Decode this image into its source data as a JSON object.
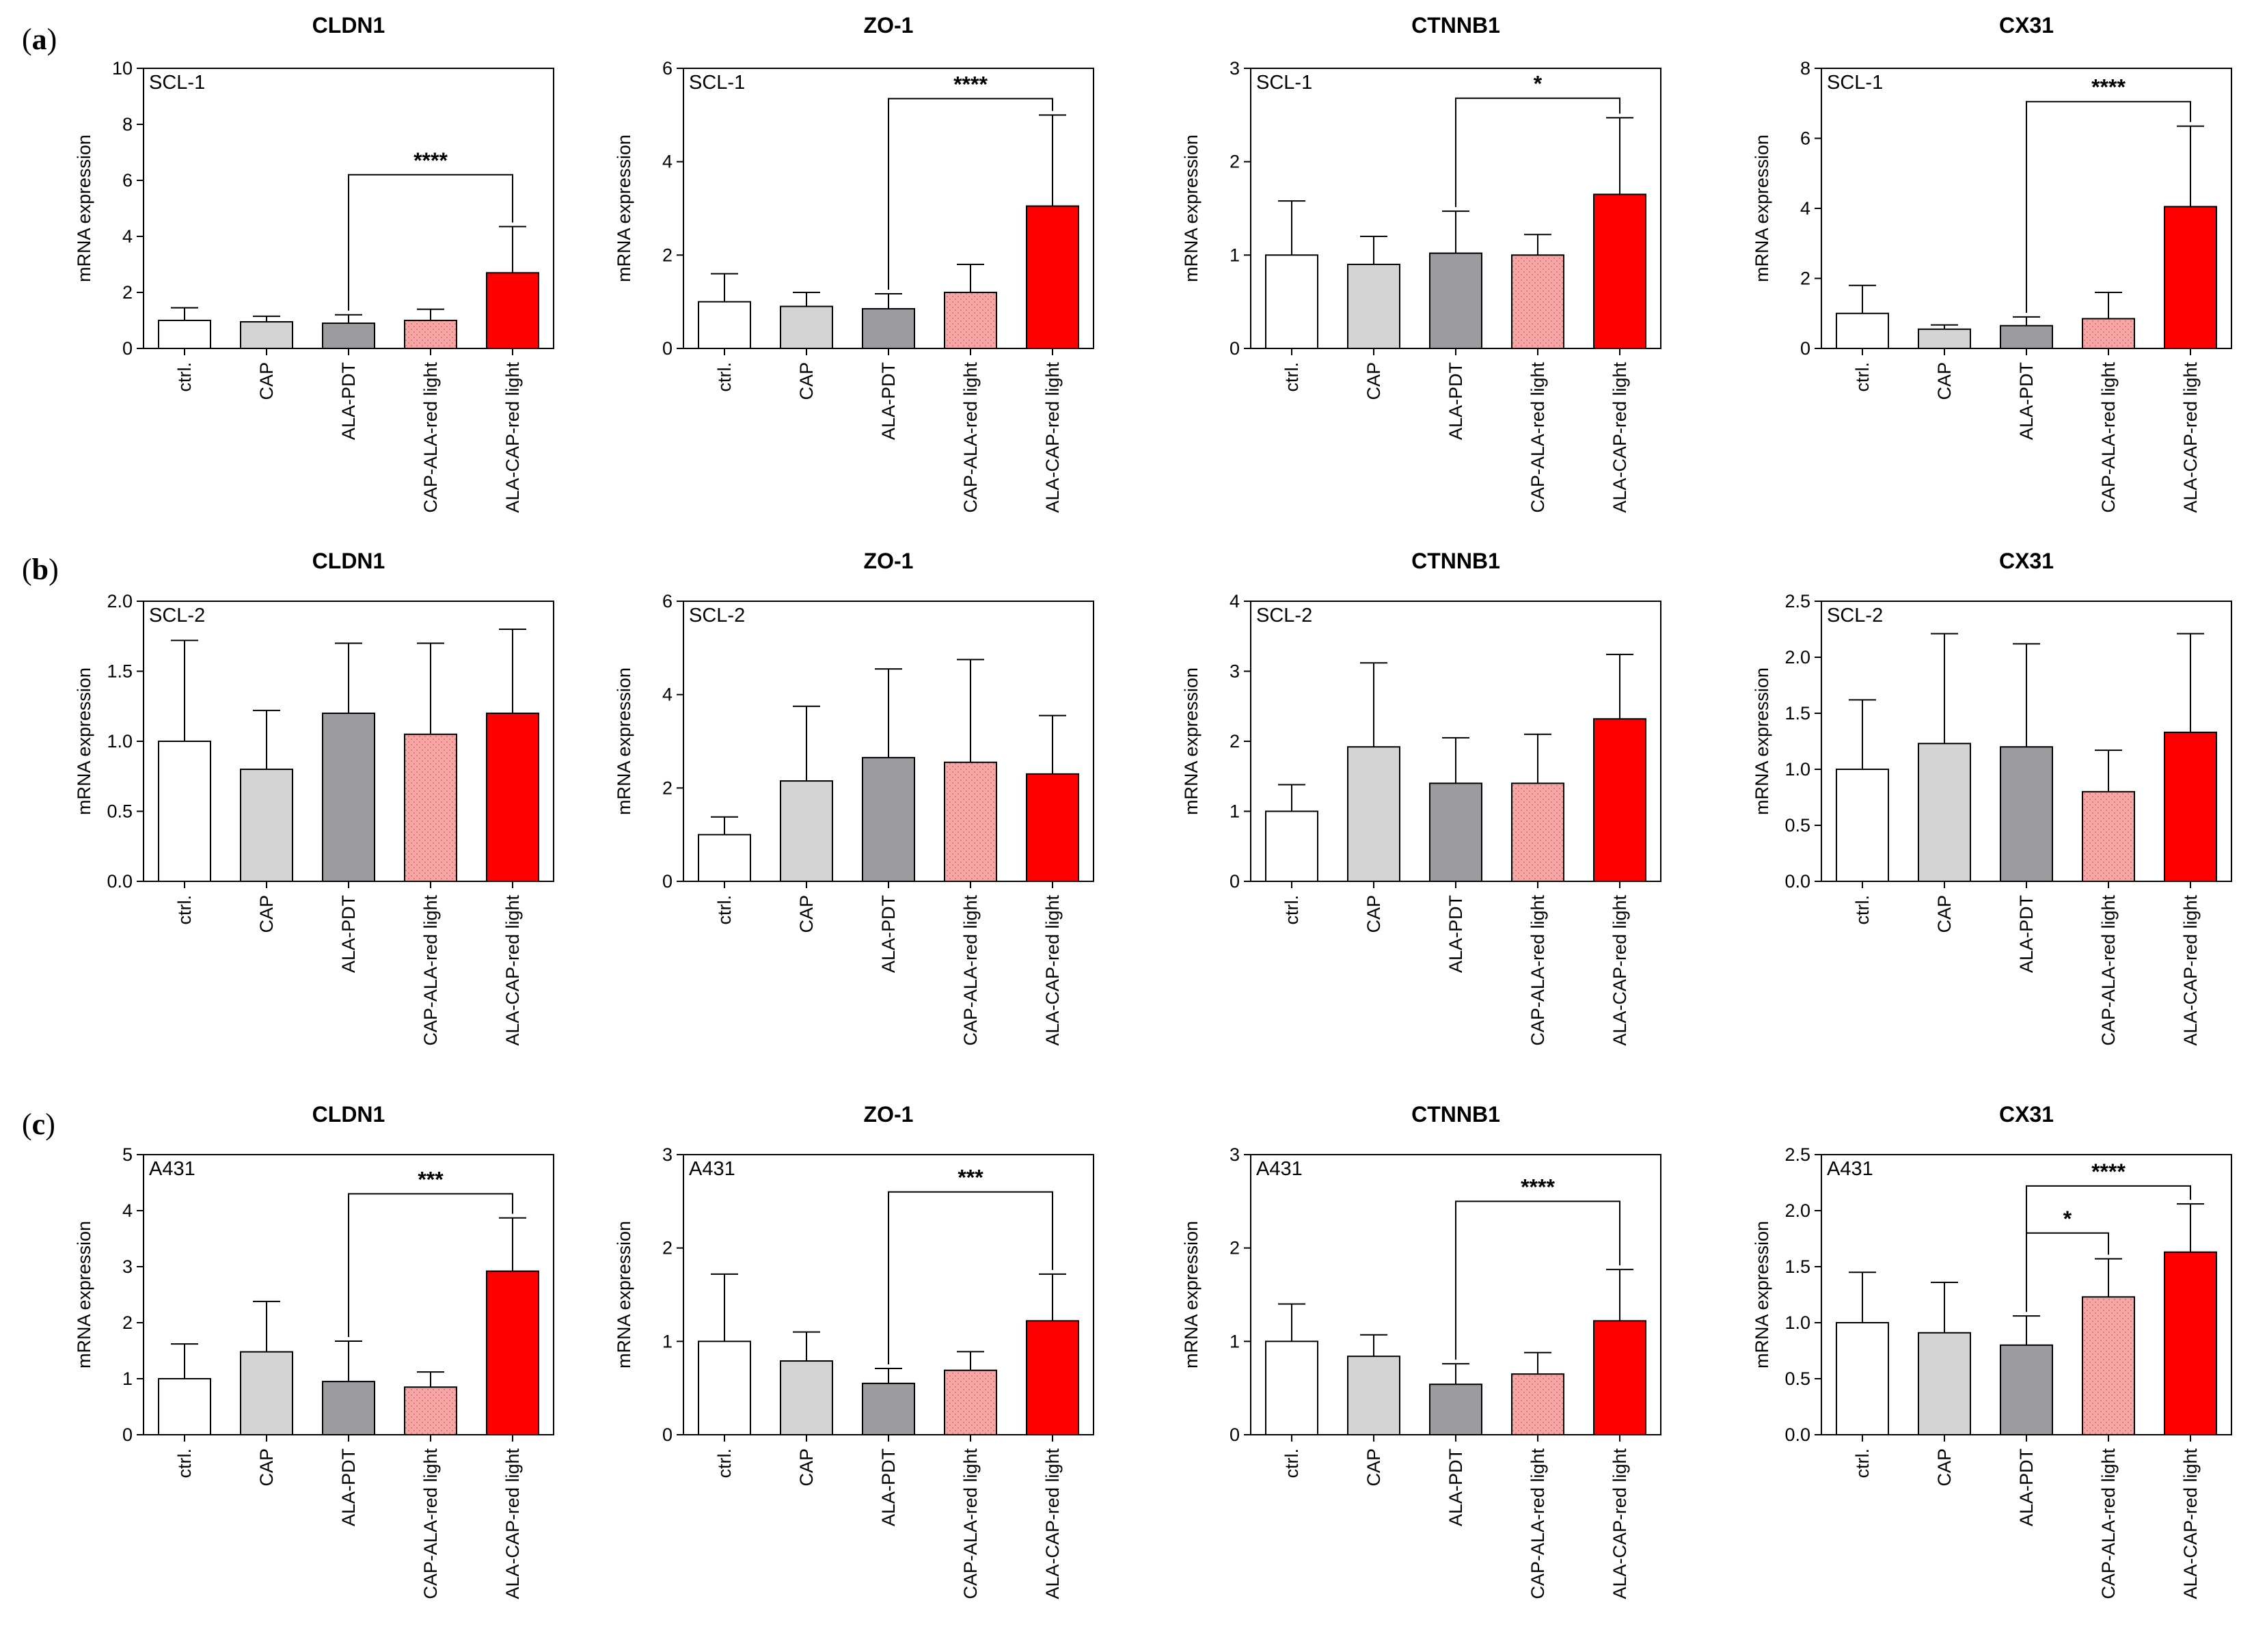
{
  "categories": [
    "ctrl.",
    "CAP",
    "ALA-PDT",
    "CAP-ALA-red light",
    "ALA-CAP-red light"
  ],
  "bar_colors": [
    "#ffffff",
    "#d4d4d4",
    "#9b9ba0",
    "#f7a6a6",
    "#ff0000"
  ],
  "ylabel": "mRNA expression",
  "row_labels": [
    {
      "open": "(",
      "letter": "a",
      "close": ")"
    },
    {
      "open": "(",
      "letter": "b",
      "close": ")"
    },
    {
      "open": "(",
      "letter": "c",
      "close": ")"
    }
  ],
  "chart_data": [
    {
      "type": "bar",
      "row": 0,
      "col": 0,
      "title": "CLDN1",
      "cell_line": "SCL-1",
      "ylabel": "mRNA expression",
      "categories": [
        "ctrl.",
        "CAP",
        "ALA-PDT",
        "CAP-ALA-red light",
        "ALA-CAP-red light"
      ],
      "ylim": [
        0,
        10
      ],
      "ticks": [
        0,
        2,
        4,
        6,
        8,
        10
      ],
      "tick_labels": [
        "0",
        "2",
        "4",
        "6",
        "8",
        "10"
      ],
      "values": [
        1.0,
        0.95,
        0.9,
        1.0,
        2.7
      ],
      "errors": [
        0.45,
        0.2,
        0.3,
        0.4,
        1.65
      ],
      "significance": [
        {
          "from": 2,
          "to": 4,
          "label": "****",
          "y": 6.2
        }
      ]
    },
    {
      "type": "bar",
      "row": 0,
      "col": 1,
      "title": "ZO-1",
      "cell_line": "SCL-1",
      "ylabel": "mRNA expression",
      "categories": [
        "ctrl.",
        "CAP",
        "ALA-PDT",
        "CAP-ALA-red light",
        "ALA-CAP-red light"
      ],
      "ylim": [
        0,
        6
      ],
      "ticks": [
        0,
        2,
        4,
        6
      ],
      "tick_labels": [
        "0",
        "2",
        "4",
        "6"
      ],
      "values": [
        1.0,
        0.9,
        0.85,
        1.2,
        3.05
      ],
      "errors": [
        0.6,
        0.3,
        0.32,
        0.6,
        1.95
      ],
      "significance": [
        {
          "from": 2,
          "to": 4,
          "label": "****",
          "y": 5.35
        }
      ]
    },
    {
      "type": "bar",
      "row": 0,
      "col": 2,
      "title": "CTNNB1",
      "cell_line": "SCL-1",
      "ylabel": "mRNA expression",
      "categories": [
        "ctrl.",
        "CAP",
        "ALA-PDT",
        "CAP-ALA-red light",
        "ALA-CAP-red light"
      ],
      "ylim": [
        0,
        3
      ],
      "ticks": [
        0,
        1,
        2,
        3
      ],
      "tick_labels": [
        "0",
        "1",
        "2",
        "3"
      ],
      "values": [
        1.0,
        0.9,
        1.02,
        1.0,
        1.65
      ],
      "errors": [
        0.58,
        0.3,
        0.45,
        0.22,
        0.82
      ],
      "significance": [
        {
          "from": 2,
          "to": 4,
          "label": "*",
          "y": 2.68
        }
      ]
    },
    {
      "type": "bar",
      "row": 0,
      "col": 3,
      "title": "CX31",
      "cell_line": "SCL-1",
      "ylabel": "mRNA expression",
      "categories": [
        "ctrl.",
        "CAP",
        "ALA-PDT",
        "CAP-ALA-red light",
        "ALA-CAP-red light"
      ],
      "ylim": [
        0,
        8
      ],
      "ticks": [
        0,
        2,
        4,
        6,
        8
      ],
      "tick_labels": [
        "0",
        "2",
        "4",
        "6",
        "8"
      ],
      "values": [
        1.0,
        0.55,
        0.65,
        0.85,
        4.05
      ],
      "errors": [
        0.8,
        0.12,
        0.25,
        0.75,
        2.3
      ],
      "significance": [
        {
          "from": 2,
          "to": 4,
          "label": "****",
          "y": 7.05
        }
      ]
    },
    {
      "type": "bar",
      "row": 1,
      "col": 0,
      "title": "CLDN1",
      "cell_line": "SCL-2",
      "ylabel": "mRNA expression",
      "categories": [
        "ctrl.",
        "CAP",
        "ALA-PDT",
        "CAP-ALA-red light",
        "ALA-CAP-red light"
      ],
      "ylim": [
        0,
        2
      ],
      "ticks": [
        0,
        0.5,
        1,
        1.5,
        2
      ],
      "tick_labels": [
        "0.0",
        "0.5",
        "1.0",
        "1.5",
        "2.0"
      ],
      "values": [
        1.0,
        0.8,
        1.2,
        1.05,
        1.2
      ],
      "errors": [
        0.72,
        0.42,
        0.5,
        0.65,
        0.6
      ],
      "significance": []
    },
    {
      "type": "bar",
      "row": 1,
      "col": 1,
      "title": "ZO-1",
      "cell_line": "SCL-2",
      "ylabel": "mRNA expression",
      "categories": [
        "ctrl.",
        "CAP",
        "ALA-PDT",
        "CAP-ALA-red light",
        "ALA-CAP-red light"
      ],
      "ylim": [
        0,
        6
      ],
      "ticks": [
        0,
        2,
        4,
        6
      ],
      "tick_labels": [
        "0",
        "2",
        "4",
        "6"
      ],
      "values": [
        1.0,
        2.15,
        2.65,
        2.55,
        2.3
      ],
      "errors": [
        0.38,
        1.6,
        1.9,
        2.2,
        1.25
      ],
      "significance": []
    },
    {
      "type": "bar",
      "row": 1,
      "col": 2,
      "title": "CTNNB1",
      "cell_line": "SCL-2",
      "ylabel": "mRNA expression",
      "categories": [
        "ctrl.",
        "CAP",
        "ALA-PDT",
        "CAP-ALA-red light",
        "ALA-CAP-red light"
      ],
      "ylim": [
        0,
        4
      ],
      "ticks": [
        0,
        1,
        2,
        3,
        4
      ],
      "tick_labels": [
        "0",
        "1",
        "2",
        "3",
        "4"
      ],
      "values": [
        1.0,
        1.92,
        1.4,
        1.4,
        2.32
      ],
      "errors": [
        0.38,
        1.2,
        0.65,
        0.7,
        0.92
      ],
      "significance": []
    },
    {
      "type": "bar",
      "row": 1,
      "col": 3,
      "title": "CX31",
      "cell_line": "SCL-2",
      "ylabel": "mRNA expression",
      "categories": [
        "ctrl.",
        "CAP",
        "ALA-PDT",
        "CAP-ALA-red light",
        "ALA-CAP-red light"
      ],
      "ylim": [
        0,
        2.5
      ],
      "ticks": [
        0,
        0.5,
        1,
        1.5,
        2,
        2.5
      ],
      "tick_labels": [
        "0.0",
        "0.5",
        "1.0",
        "1.5",
        "2.0",
        "2.5"
      ],
      "values": [
        1.0,
        1.23,
        1.2,
        0.8,
        1.33
      ],
      "errors": [
        0.62,
        0.98,
        0.92,
        0.37,
        0.88
      ],
      "significance": []
    },
    {
      "type": "bar",
      "row": 2,
      "col": 0,
      "title": "CLDN1",
      "cell_line": "A431",
      "ylabel": "mRNA expression",
      "categories": [
        "ctrl.",
        "CAP",
        "ALA-PDT",
        "CAP-ALA-red light",
        "ALA-CAP-red light"
      ],
      "ylim": [
        0,
        5
      ],
      "ticks": [
        0,
        1,
        2,
        3,
        4,
        5
      ],
      "tick_labels": [
        "0",
        "1",
        "2",
        "3",
        "4",
        "5"
      ],
      "values": [
        1.0,
        1.48,
        0.95,
        0.85,
        2.92
      ],
      "errors": [
        0.62,
        0.9,
        0.72,
        0.27,
        0.95
      ],
      "significance": [
        {
          "from": 2,
          "to": 4,
          "label": "***",
          "y": 4.3
        }
      ]
    },
    {
      "type": "bar",
      "row": 2,
      "col": 1,
      "title": "ZO-1",
      "cell_line": "A431",
      "ylabel": "mRNA expression",
      "categories": [
        "ctrl.",
        "CAP",
        "ALA-PDT",
        "CAP-ALA-red light",
        "ALA-CAP-red light"
      ],
      "ylim": [
        0,
        3
      ],
      "ticks": [
        0,
        1,
        2,
        3
      ],
      "tick_labels": [
        "0",
        "1",
        "2",
        "3"
      ],
      "values": [
        1.0,
        0.79,
        0.55,
        0.69,
        1.22
      ],
      "errors": [
        0.72,
        0.31,
        0.16,
        0.2,
        0.5
      ],
      "significance": [
        {
          "from": 2,
          "to": 4,
          "label": "***",
          "y": 2.6
        }
      ]
    },
    {
      "type": "bar",
      "row": 2,
      "col": 2,
      "title": "CTNNB1",
      "cell_line": "A431",
      "ylabel": "mRNA expression",
      "categories": [
        "ctrl.",
        "CAP",
        "ALA-PDT",
        "CAP-ALA-red light",
        "ALA-CAP-red light"
      ],
      "ylim": [
        0,
        3
      ],
      "ticks": [
        0,
        1,
        2,
        3
      ],
      "tick_labels": [
        "0",
        "1",
        "2",
        "3"
      ],
      "values": [
        1.0,
        0.84,
        0.54,
        0.65,
        1.22
      ],
      "errors": [
        0.4,
        0.23,
        0.22,
        0.23,
        0.55
      ],
      "significance": [
        {
          "from": 2,
          "to": 4,
          "label": "****",
          "y": 2.5
        }
      ]
    },
    {
      "type": "bar",
      "row": 2,
      "col": 3,
      "title": "CX31",
      "cell_line": "A431",
      "ylabel": "mRNA expression",
      "categories": [
        "ctrl.",
        "CAP",
        "ALA-PDT",
        "CAP-ALA-red light",
        "ALA-CAP-red light"
      ],
      "ylim": [
        0,
        2.5
      ],
      "ticks": [
        0,
        0.5,
        1,
        1.5,
        2,
        2.5
      ],
      "tick_labels": [
        "0.0",
        "0.5",
        "1.0",
        "1.5",
        "2.0",
        "2.5"
      ],
      "values": [
        1.0,
        0.91,
        0.8,
        1.23,
        1.63
      ],
      "errors": [
        0.45,
        0.45,
        0.26,
        0.34,
        0.43
      ],
      "significance": [
        {
          "from": 2,
          "to": 3,
          "label": "*",
          "y": 1.8
        },
        {
          "from": 2,
          "to": 4,
          "label": "****",
          "y": 2.22
        }
      ]
    }
  ]
}
